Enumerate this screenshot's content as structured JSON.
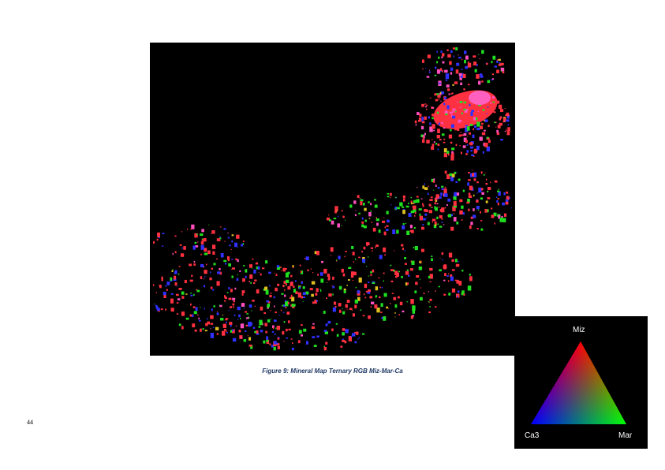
{
  "figure": {
    "caption": "Figure 9: Mineral Map Ternary RGB Miz-Mar-Ca"
  },
  "page": {
    "number": "44"
  },
  "legend": {
    "top_label": "Miz",
    "left_label": "Ca3",
    "right_label": "Mar",
    "colors": {
      "top": "#ff0000",
      "left": "#0000ff",
      "right": "#00ff00",
      "background": "#000000"
    }
  },
  "map": {
    "background_color": "#000000",
    "phase_colors": [
      "#ff3040",
      "#20e020",
      "#3030ff",
      "#ff50c0",
      "#e0c020"
    ]
  }
}
